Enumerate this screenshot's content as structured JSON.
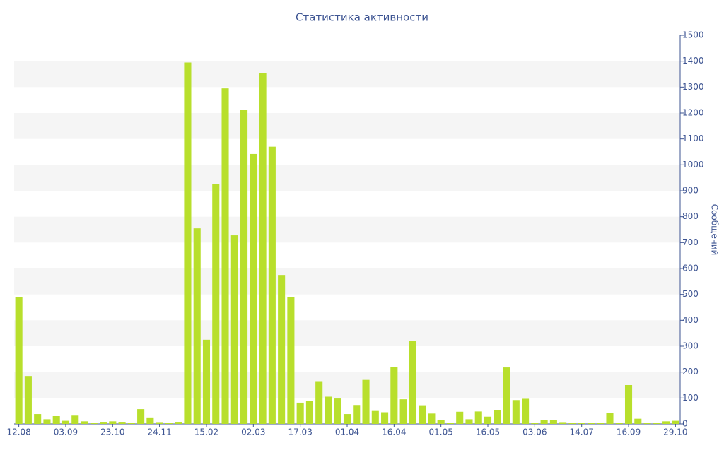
{
  "chart_data": {
    "type": "bar",
    "title": "Статистика активности",
    "y_axis_label": "Сообщений",
    "y_axis_side": "right",
    "categories": [
      "12.08",
      null,
      null,
      null,
      null,
      "03.09",
      null,
      null,
      null,
      null,
      "23.10",
      null,
      null,
      null,
      null,
      "24.11",
      null,
      null,
      null,
      null,
      "15.02",
      null,
      null,
      null,
      null,
      "02.03",
      null,
      null,
      null,
      null,
      "17.03",
      null,
      null,
      null,
      null,
      "01.04",
      null,
      null,
      null,
      null,
      "16.04",
      null,
      null,
      null,
      null,
      "01.05",
      null,
      null,
      null,
      null,
      "16.05",
      null,
      null,
      null,
      null,
      "03.06",
      null,
      null,
      null,
      null,
      "14.07",
      null,
      null,
      null,
      null,
      "16.09",
      null,
      null,
      null,
      null,
      "29.10"
    ],
    "values": [
      490,
      185,
      38,
      18,
      30,
      12,
      32,
      10,
      5,
      8,
      10,
      8,
      5,
      57,
      25,
      7,
      5,
      8,
      1395,
      755,
      325,
      925,
      1295,
      728,
      1213,
      1042,
      1355,
      1070,
      575,
      490,
      82,
      90,
      165,
      105,
      98,
      38,
      73,
      170,
      50,
      45,
      220,
      95,
      320,
      72,
      40,
      15,
      5,
      47,
      18,
      48,
      28,
      52,
      218,
      92,
      97,
      5,
      15,
      15,
      7,
      5,
      4,
      5,
      5,
      43,
      5,
      150,
      20,
      3,
      3,
      10,
      12
    ],
    "color": "#b8df2c",
    "ylim": [
      0,
      1500
    ],
    "yticks": [
      0,
      100,
      200,
      300,
      400,
      500,
      600,
      700,
      800,
      900,
      1000,
      1100,
      1200,
      1300,
      1400,
      1500
    ],
    "grid": true
  }
}
